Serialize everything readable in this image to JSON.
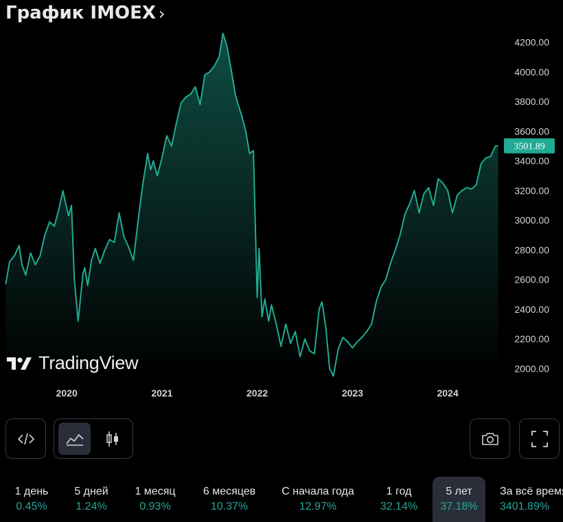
{
  "header": {
    "title": "График IMOEX",
    "chevron": "›"
  },
  "brand": {
    "logo_text": "TradingView"
  },
  "colors": {
    "line": "#22ab94",
    "last_badge": "#22ab94",
    "positive": "#26a69a",
    "background": "#000000"
  },
  "toolbar": {
    "embed_icon": "code-icon",
    "area_icon": "area-chart-icon",
    "candle_icon": "candlestick-icon",
    "snapshot_icon": "camera-icon",
    "fullscreen_icon": "fullscreen-icon"
  },
  "periods": [
    {
      "label": "1 день",
      "change": "0.45%"
    },
    {
      "label": "5 дней",
      "change": "1.24%"
    },
    {
      "label": "1 месяц",
      "change": "0.93%"
    },
    {
      "label": "6 месяцев",
      "change": "10.37%"
    },
    {
      "label": "С начала года",
      "change": "12.97%"
    },
    {
      "label": "1 год",
      "change": "32.14%"
    },
    {
      "label": "5 лет",
      "change": "37.18%",
      "active": true
    },
    {
      "label": "За всё время",
      "change": "3401.89%"
    }
  ],
  "chart_data": {
    "type": "area",
    "title": "",
    "xlabel": "",
    "ylabel": "",
    "x_ticks": [
      "2020",
      "2021",
      "2022",
      "2023",
      "2024"
    ],
    "y_ticks": [
      "2000.00",
      "2200.00",
      "2400.00",
      "2600.00",
      "2800.00",
      "3000.00",
      "3200.00",
      "3400.00",
      "3600.00",
      "3800.00",
      "4000.00",
      "4200.00"
    ],
    "ylim": [
      1960,
      4300
    ],
    "xlim": [
      2019.35,
      2024.54
    ],
    "last_value": "3501.89",
    "series": [
      {
        "x": [
          2019.36,
          2019.4,
          2019.45,
          2019.5,
          2019.53,
          2019.57,
          2019.62,
          2019.67,
          2019.72,
          2019.77,
          2019.82,
          2019.87,
          2019.92,
          2019.96,
          2019.99,
          2020.02,
          2020.05,
          2020.08,
          2020.12,
          2020.17,
          2020.19,
          2020.22,
          2020.26,
          2020.3,
          2020.35,
          2020.4,
          2020.45,
          2020.5,
          2020.55,
          2020.6,
          2020.65,
          2020.7,
          2020.75,
          2020.8,
          2020.85,
          2020.88,
          2020.91,
          2020.95,
          2021.0,
          2021.05,
          2021.1,
          2021.15,
          2021.2,
          2021.25,
          2021.3,
          2021.35,
          2021.4,
          2021.45,
          2021.5,
          2021.55,
          2021.6,
          2021.64,
          2021.68,
          2021.72,
          2021.77,
          2021.8,
          2021.84,
          2021.88,
          2021.92,
          2021.96,
          2022.0,
          2022.02,
          2022.05,
          2022.08,
          2022.12,
          2022.15,
          2022.2,
          2022.25,
          2022.3,
          2022.35,
          2022.4,
          2022.45,
          2022.5,
          2022.55,
          2022.6,
          2022.65,
          2022.68,
          2022.72,
          2022.76,
          2022.8,
          2022.85,
          2022.9,
          2022.95,
          2023.0,
          2023.05,
          2023.1,
          2023.15,
          2023.2,
          2023.25,
          2023.3,
          2023.35,
          2023.4,
          2023.45,
          2023.5,
          2023.55,
          2023.6,
          2023.65,
          2023.7,
          2023.75,
          2023.8,
          2023.85,
          2023.9,
          2023.95,
          2024.0,
          2024.05,
          2024.1,
          2024.15,
          2024.2,
          2024.25,
          2024.3,
          2024.35,
          2024.4,
          2024.45,
          2024.5,
          2024.53
        ],
        "y": [
          2570,
          2720,
          2760,
          2830,
          2700,
          2630,
          2780,
          2700,
          2760,
          2900,
          2990,
          2960,
          3080,
          3200,
          3110,
          3030,
          3100,
          2600,
          2320,
          2640,
          2680,
          2560,
          2730,
          2810,
          2710,
          2800,
          2870,
          2850,
          3050,
          2890,
          2820,
          2730,
          3000,
          3250,
          3450,
          3340,
          3400,
          3300,
          3420,
          3570,
          3500,
          3650,
          3790,
          3830,
          3850,
          3900,
          3780,
          3980,
          4000,
          4040,
          4100,
          4260,
          4180,
          4040,
          3850,
          3780,
          3700,
          3600,
          3450,
          3470,
          2480,
          2810,
          2350,
          2470,
          2320,
          2430,
          2300,
          2150,
          2300,
          2170,
          2250,
          2080,
          2200,
          2120,
          2100,
          2400,
          2450,
          2280,
          2000,
          1950,
          2130,
          2210,
          2180,
          2140,
          2180,
          2210,
          2250,
          2300,
          2450,
          2550,
          2600,
          2710,
          2800,
          2900,
          3040,
          3110,
          3200,
          3050,
          3180,
          3220,
          3100,
          3280,
          3250,
          3200,
          3050,
          3170,
          3200,
          3220,
          3210,
          3240,
          3380,
          3420,
          3430,
          3500,
          3502
        ]
      }
    ]
  }
}
